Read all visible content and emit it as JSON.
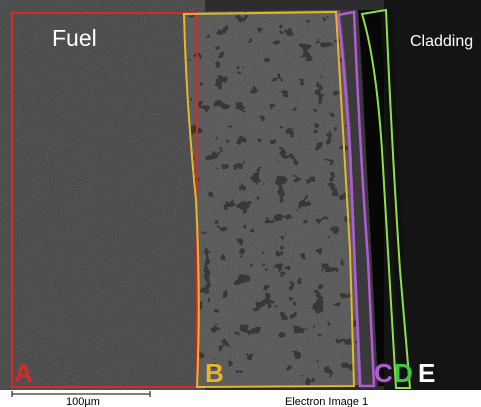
{
  "image": {
    "label_fuel": "Fuel",
    "label_cladding": "Cladding",
    "scale_bar_label": "100µm",
    "caption": "Electron Image 1"
  },
  "regions": [
    {
      "letter": "A",
      "color": "#d42a2a"
    },
    {
      "letter": "B",
      "color": "#e6b62e"
    },
    {
      "letter": "C",
      "color": "#b25ad8"
    },
    {
      "letter": "D",
      "color": "#3ec83e"
    },
    {
      "letter": "E",
      "color": "#ffffff"
    }
  ],
  "colors": {
    "fuel_texture": "#3a3a3a",
    "porous_texture": "#4a4a4a",
    "pore": "#0e0e0e",
    "cladding": "#141414",
    "gap": "#070707"
  }
}
